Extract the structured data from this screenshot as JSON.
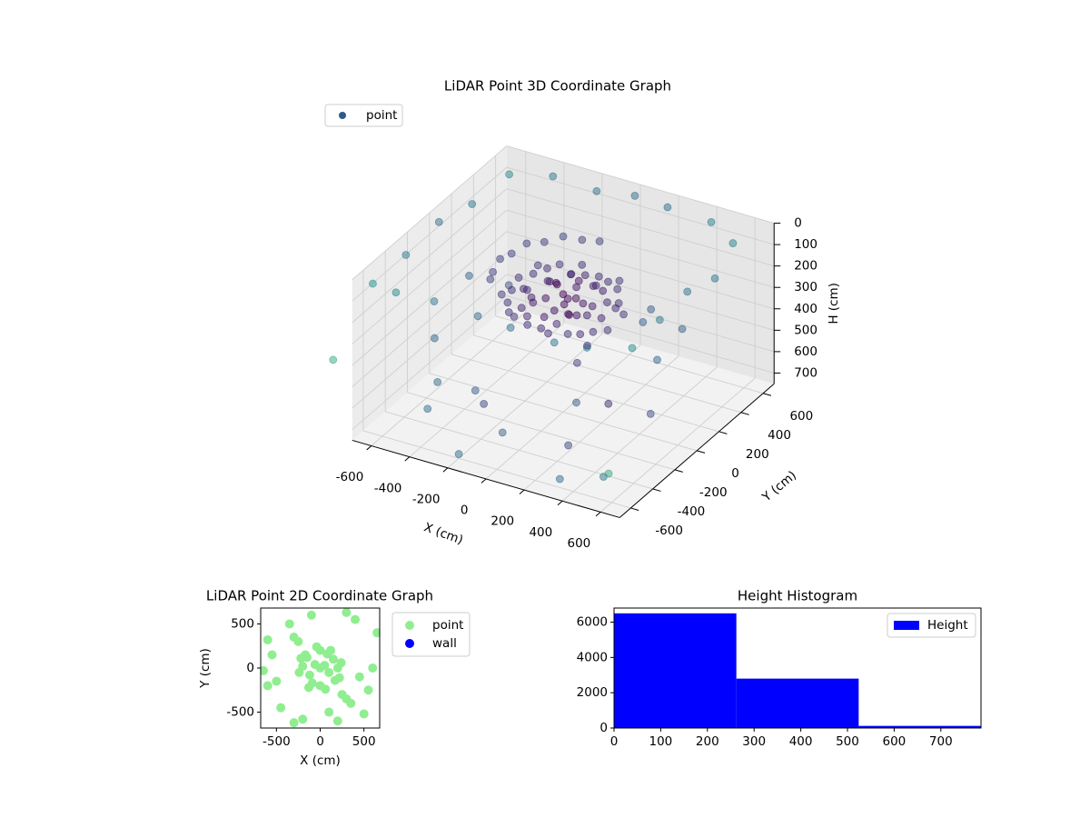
{
  "chart_data": [
    {
      "type": "scatter3d",
      "title": "LiDAR Point 3D Coordinate Graph",
      "xlabel": "X (cm)",
      "ylabel": "Y (cm)",
      "zlabel": "H (cm)",
      "xlim": [
        -700,
        700
      ],
      "ylim": [
        -700,
        700
      ],
      "zlim": [
        0,
        750
      ],
      "invert_z": true,
      "xticks": [
        -600,
        -400,
        -200,
        0,
        200,
        400,
        600
      ],
      "yticks": [
        -600,
        -400,
        -200,
        0,
        200,
        400,
        600
      ],
      "zticks": [
        0,
        100,
        200,
        300,
        400,
        500,
        600,
        700
      ],
      "grid": true,
      "cmap": "viridis",
      "legend": "upper left",
      "legend_color": "#2e5a8b",
      "series": [
        {
          "name": "point",
          "x": [
            -650,
            -500,
            -300,
            -100,
            100,
            300,
            500,
            650,
            650,
            650,
            650,
            600,
            400,
            200,
            0,
            -200,
            -400,
            -600,
            -650,
            -650,
            -650,
            -500,
            -400,
            300,
            450,
            -200,
            200,
            -550,
            550,
            0,
            100,
            -300,
            200,
            -100,
            400,
            -450,
            300,
            500,
            -600,
            150,
            -200,
            -800,
            700,
            0,
            -85,
            -165,
            -233,
            -286,
            -319,
            -330,
            -319,
            -286,
            0,
            50,
            -60,
            100,
            -120,
            150,
            -150,
            200,
            -200,
            0,
            0,
            80,
            -90,
            170,
            -170,
            240,
            -240,
            60,
            -40,
            120,
            -130,
            220,
            -220,
            30,
            -80,
            130,
            -30,
            90,
            -110,
            180,
            -180,
            250,
            -250,
            40,
            -50,
            160,
            -160,
            100,
            -100,
            210,
            -210,
            70,
            -70,
            20,
            -20,
            140,
            -140,
            230,
            -230,
            0,
            0,
            110,
            -10,
            190,
            -190,
            60,
            -60,
            270,
            -270,
            150
          ],
          "y": [
            -600,
            -650,
            -650,
            -600,
            -650,
            -600,
            -650,
            -500,
            -250,
            0,
            250,
            500,
            650,
            600,
            650,
            650,
            600,
            550,
            300,
            0,
            -300,
            -300,
            200,
            -400,
            300,
            -450,
            450,
            100,
            -100,
            -550,
            550,
            -200,
            -300,
            300,
            100,
            -450,
            -550,
            -500,
            -100,
            150,
            -600,
            -700,
            -800,
            330,
            319,
            286,
            233,
            165,
            85,
            0,
            -85,
            -165,
            0,
            30,
            40,
            -50,
            -80,
            100,
            120,
            0,
            20,
            200,
            -200,
            160,
            -170,
            -140,
            150,
            60,
            -50,
            -240,
            240,
            200,
            -220,
            -110,
            110,
            90,
            -20,
            40,
            -120,
            -110,
            70,
            180,
            -180,
            -30,
            30,
            -60,
            160,
            -60,
            -100,
            100,
            -100,
            140,
            -140,
            -180,
            190,
            20,
            -20,
            -200,
            210,
            -180,
            170,
            120,
            -80,
            -10,
            60,
            70,
            -30,
            220,
            -220,
            80,
            -90,
            250
          ],
          "z": [
            50,
            30,
            20,
            60,
            40,
            80,
            30,
            60,
            40,
            20,
            70,
            30,
            50,
            10,
            30,
            60,
            20,
            40,
            80,
            30,
            50,
            400,
            350,
            450,
            380,
            500,
            420,
            300,
            320,
            600,
            550,
            700,
            720,
            680,
            700,
            650,
            740,
            700,
            720,
            740,
            730,
            400,
            500,
            100,
            110,
            100,
            120,
            110,
            130,
            120,
            140,
            130,
            200,
            220,
            180,
            250,
            210,
            190,
            230,
            260,
            240,
            200,
            270,
            210,
            250,
            280,
            190,
            230,
            220,
            260,
            180,
            200,
            240,
            270,
            210,
            170,
            230,
            240,
            260,
            220,
            200,
            210,
            250,
            290,
            200,
            210,
            190,
            230,
            260,
            180,
            220,
            250,
            230,
            240,
            210,
            300,
            150,
            260,
            190,
            300,
            200,
            220,
            240,
            210,
            250,
            220,
            210,
            200,
            260,
            260,
            230,
            210
          ]
        }
      ]
    },
    {
      "type": "scatter",
      "title": "LiDAR Point 2D Coordinate Graph",
      "xlabel": "X (cm)",
      "ylabel": "Y (cm)",
      "xlim": [
        -680,
        680
      ],
      "ylim": [
        -680,
        680
      ],
      "xticks": [
        -500,
        0,
        500
      ],
      "yticks": [
        -500,
        0,
        500
      ],
      "legend": "outside right",
      "series": [
        {
          "name": "point",
          "color": "#90ee90",
          "x": [
            0,
            50,
            -60,
            100,
            -120,
            150,
            -150,
            200,
            -200,
            0,
            0,
            80,
            -90,
            170,
            -170,
            240,
            -240,
            60,
            -40,
            120,
            -130,
            220,
            -220,
            -250,
            250,
            -300,
            300,
            -600,
            -500,
            -350,
            -300,
            500,
            600,
            550,
            400,
            -600,
            -550,
            650,
            -450,
            200,
            300,
            -200,
            450,
            -650,
            350,
            100,
            -100
          ],
          "y": [
            0,
            30,
            40,
            -50,
            -80,
            100,
            120,
            0,
            20,
            200,
            -200,
            160,
            -170,
            -140,
            150,
            60,
            -50,
            -240,
            240,
            200,
            -220,
            -110,
            110,
            300,
            -300,
            350,
            -350,
            320,
            -150,
            500,
            -620,
            -520,
            0,
            -250,
            550,
            -200,
            150,
            400,
            -450,
            -600,
            630,
            -580,
            -100,
            -30,
            -400,
            -500,
            600
          ]
        },
        {
          "name": "wall",
          "color": "#0000ff",
          "x": [],
          "y": []
        }
      ]
    },
    {
      "type": "histogram",
      "title": "Height Histogram",
      "xlim": [
        0,
        786
      ],
      "ylim": [
        0,
        6800
      ],
      "xticks": [
        0,
        100,
        200,
        300,
        400,
        500,
        600,
        700
      ],
      "yticks": [
        0,
        2000,
        4000,
        6000
      ],
      "legend": "upper right",
      "series": [
        {
          "name": "Height",
          "color": "#0000ff",
          "bins": [
            0,
            262,
            524,
            786
          ],
          "values": [
            6500,
            2800,
            120
          ]
        }
      ]
    }
  ]
}
